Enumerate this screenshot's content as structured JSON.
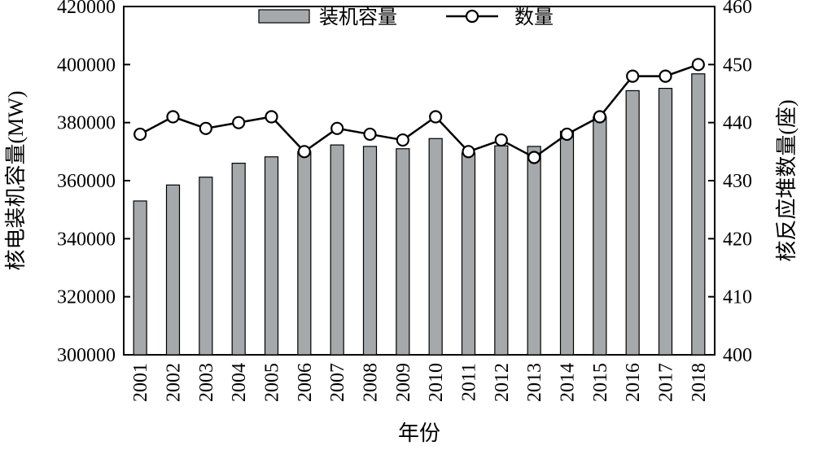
{
  "chart_data": {
    "type": "bar",
    "categories": [
      "2001",
      "2002",
      "2003",
      "2004",
      "2005",
      "2006",
      "2007",
      "2008",
      "2009",
      "2010",
      "2011",
      "2012",
      "2013",
      "2014",
      "2015",
      "2016",
      "2017",
      "2018"
    ],
    "series": [
      {
        "name": "装机容量",
        "type": "bar",
        "axis": "left",
        "values": [
          353000,
          358500,
          361200,
          366000,
          368200,
          370000,
          372300,
          371800,
          371000,
          374500,
          369500,
          372000,
          371800,
          377000,
          382000,
          391000,
          391800,
          396800
        ]
      },
      {
        "name": "数量",
        "type": "line",
        "axis": "right",
        "values": [
          438,
          441,
          439,
          440,
          441,
          435,
          439,
          438,
          437,
          441,
          435,
          437,
          434,
          438,
          441,
          448,
          448,
          450
        ]
      }
    ],
    "xlabel": "年份",
    "ylabel": "核电装机容量(MW)",
    "y2label": "核反应堆数量(座)",
    "ylim": [
      300000,
      420000
    ],
    "y2lim": [
      400,
      460
    ],
    "yticks": [
      "300000",
      "320000",
      "340000",
      "360000",
      "380000",
      "400000",
      "420000"
    ],
    "y2ticks": [
      "400",
      "410",
      "420",
      "430",
      "440",
      "450",
      "460"
    ],
    "legend_position": "top-center",
    "grid": false,
    "colors": {
      "bar_fill": "#a6a9ab",
      "bar_stroke": "#000000",
      "line": "#000000",
      "marker_fill": "#ffffff"
    }
  }
}
